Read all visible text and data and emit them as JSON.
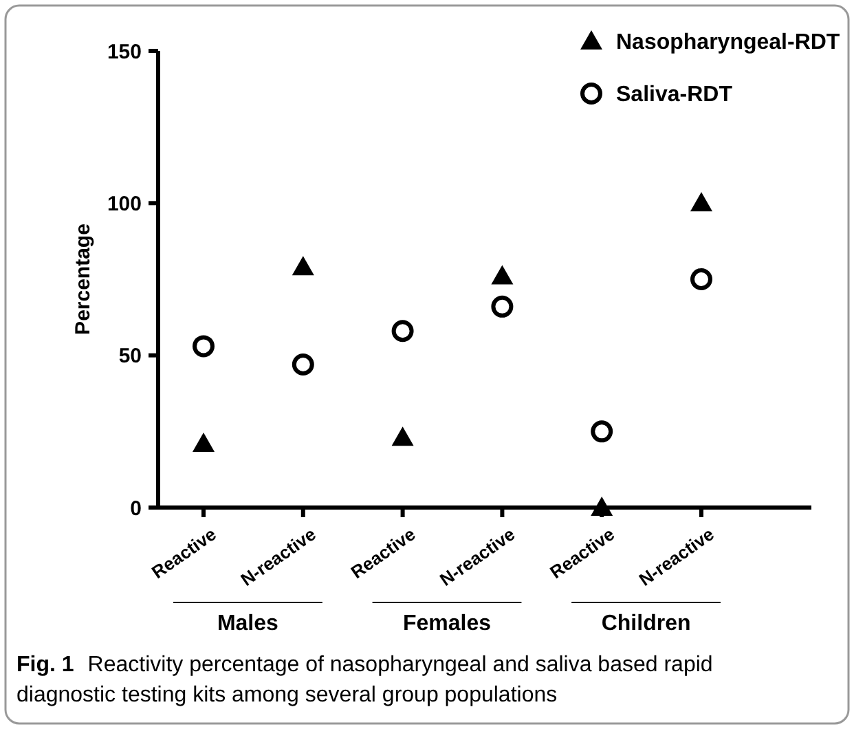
{
  "chart_data": {
    "type": "scatter",
    "ylabel": "Percentage",
    "categories": [
      "Reactive",
      "N-reactive",
      "Reactive",
      "N-reactive",
      "Reactive",
      "N-reactive"
    ],
    "series": [
      {
        "name": "Nasopharyngeal-RDT",
        "color": "#000000",
        "marker": "triangle",
        "values": [
          21,
          79,
          23,
          76,
          0,
          100
        ]
      },
      {
        "name": "Saliva-RDT",
        "color": "#000000",
        "marker": "circle",
        "values": [
          53,
          47,
          58,
          66,
          25,
          75
        ]
      }
    ],
    "ylim": [
      0,
      150
    ],
    "yticks": [
      0,
      50,
      100,
      150
    ],
    "grid": false,
    "legend": "top right",
    "annotations": [
      "Males",
      "Females",
      "Children",
      "Fig. 1",
      "Reactivity percentage of nasopharyngeal and saliva based rapid diagnostic testing kits among several group populations"
    ]
  }
}
